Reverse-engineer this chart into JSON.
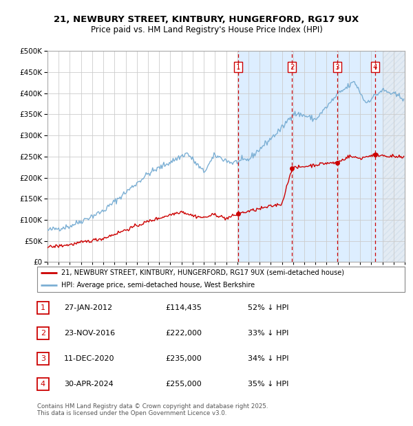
{
  "title1": "21, NEWBURY STREET, KINTBURY, HUNGERFORD, RG17 9UX",
  "title2": "Price paid vs. HM Land Registry's House Price Index (HPI)",
  "legend1": "21, NEWBURY STREET, KINTBURY, HUNGERFORD, RG17 9UX (semi-detached house)",
  "legend2": "HPI: Average price, semi-detached house, West Berkshire",
  "footer": "Contains HM Land Registry data © Crown copyright and database right 2025.\nThis data is licensed under the Open Government Licence v3.0.",
  "sale_markers": [
    {
      "num": 1,
      "date": "27-JAN-2012",
      "price": 114435,
      "x_year": 2012.07,
      "pct": "52% ↓ HPI"
    },
    {
      "num": 2,
      "date": "23-NOV-2016",
      "price": 222000,
      "x_year": 2016.9,
      "pct": "33% ↓ HPI"
    },
    {
      "num": 3,
      "date": "11-DEC-2020",
      "price": 235000,
      "x_year": 2020.95,
      "pct": "34% ↓ HPI"
    },
    {
      "num": 4,
      "date": "30-APR-2024",
      "price": 255000,
      "x_year": 2024.33,
      "pct": "35% ↓ HPI"
    }
  ],
  "hpi_color": "#7bafd4",
  "sale_color": "#cc0000",
  "grid_color": "#cccccc",
  "background_color": "#ffffff",
  "plot_bg_color": "#ffffff",
  "shade_color": "#ddeeff",
  "hatch_color": "#c8d8e8",
  "ylim": [
    0,
    500000
  ],
  "xlim_start": 1995,
  "xlim_end": 2027,
  "shade_start": 2012.07,
  "hatch_start": 2025.0
}
